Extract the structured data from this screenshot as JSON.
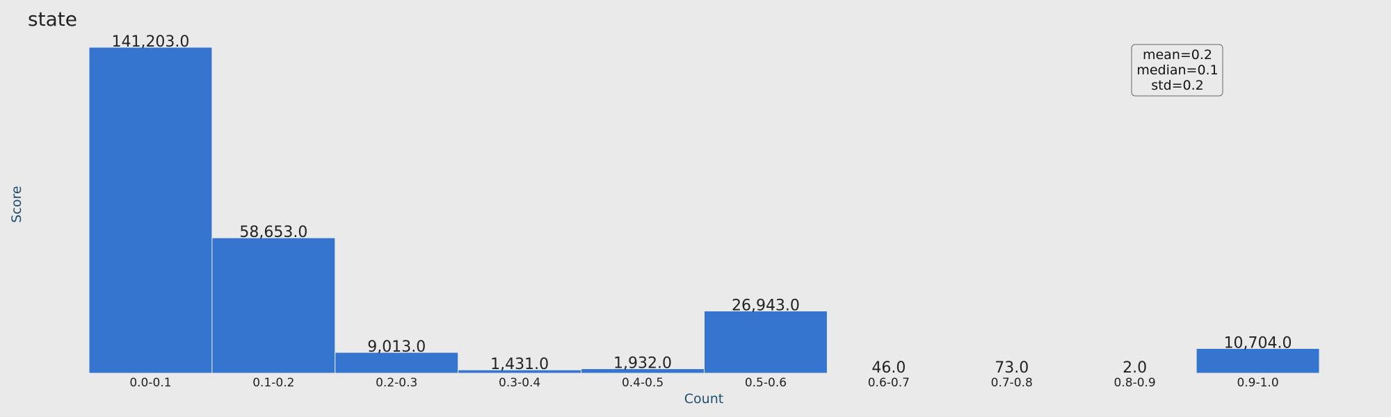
{
  "chart_data": {
    "type": "bar",
    "title": "state",
    "xlabel": "Count",
    "ylabel": "Score",
    "categories": [
      "0.0-0.1",
      "0.1-0.2",
      "0.2-0.3",
      "0.3-0.4",
      "0.4-0.5",
      "0.5-0.6",
      "0.6-0.7",
      "0.7-0.8",
      "0.8-0.9",
      "0.9-1.0"
    ],
    "values": [
      141203,
      58653,
      9013,
      1431,
      1932,
      26943,
      46,
      73,
      2,
      10704
    ],
    "value_labels": [
      "141,203.0",
      "58,653.0",
      "9,013.0",
      "1,431.0",
      "1,932.0",
      "26,943.0",
      "46.0",
      "73.0",
      "2.0",
      "10,704.0"
    ],
    "ylim": [
      0,
      141203
    ],
    "grid": false,
    "bar_color": "#3575d0",
    "stats": {
      "lines": [
        "mean=0.2",
        "median=0.1",
        "std=0.2"
      ],
      "placement": "top-right"
    }
  }
}
